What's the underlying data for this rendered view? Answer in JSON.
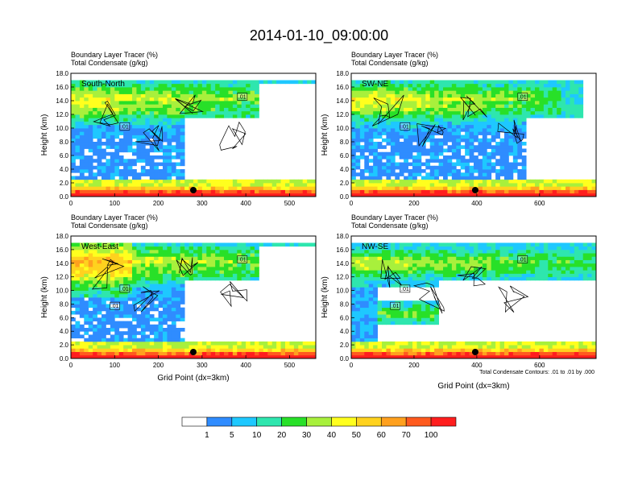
{
  "figure": {
    "title": "2014-01-10_09:00:00",
    "footnote": "Total Condensate Contours: .01 to .01 by .000"
  },
  "colorbar": {
    "colors": [
      "#ffffff",
      "#2f8cff",
      "#1ec8ff",
      "#2ee6ae",
      "#28e028",
      "#a8f03c",
      "#ffff1e",
      "#ffd21e",
      "#ffa01e",
      "#ff5a1e",
      "#ff1e1e"
    ],
    "labels": [
      "1",
      "5",
      "10",
      "20",
      "30",
      "40",
      "50",
      "60",
      "70",
      "100"
    ]
  },
  "chart_data": [
    {
      "type": "heatmap",
      "subtitle_1": "Boundary Layer Tracer   (%)",
      "subtitle_2": "Total Condensate   (g/kg)",
      "direction": "South-North",
      "ylabel": "Height (km)",
      "xlabel": "",
      "xlim": [
        0,
        560
      ],
      "ylim": [
        0,
        18
      ],
      "xticks": [
        "0",
        "100",
        "200",
        "300",
        "400",
        "500"
      ],
      "xtick_values": [
        0,
        100,
        200,
        300,
        400,
        500
      ],
      "yticks": [
        "0.0",
        "2.0",
        "4.0",
        "6.0",
        "8.0",
        "10.0",
        "12.0",
        "14.0",
        "16.0",
        "18.0"
      ],
      "contour_labels": [
        ".01",
        ".01"
      ],
      "marker_x": 280
    },
    {
      "type": "heatmap",
      "subtitle_1": "Boundary Layer Tracer   (%)",
      "subtitle_2": "Total Condensate   (g/kg)",
      "direction": "SW-NE",
      "ylabel": "Height (km)",
      "xlabel": "",
      "xlim": [
        0,
        780
      ],
      "ylim": [
        0,
        18
      ],
      "xticks": [
        "0",
        "200",
        "400",
        "600"
      ],
      "xtick_values": [
        0,
        200,
        400,
        600
      ],
      "yticks": [
        "0.0",
        "2.0",
        "4.0",
        "6.0",
        "8.0",
        "10.0",
        "12.0",
        "14.0",
        "16.0",
        "18.0"
      ],
      "contour_labels": [
        ".01",
        ".01"
      ],
      "marker_x": 395
    },
    {
      "type": "heatmap",
      "subtitle_1": "Boundary Layer Tracer   (%)",
      "subtitle_2": "Total Condensate   (g/kg)",
      "direction": "West-East",
      "ylabel": "Height (km)",
      "xlabel": "Grid Point (dx=3km)",
      "xlim": [
        0,
        560
      ],
      "ylim": [
        0,
        18
      ],
      "xticks": [
        "0",
        "100",
        "200",
        "300",
        "400",
        "500"
      ],
      "xtick_values": [
        0,
        100,
        200,
        300,
        400,
        500
      ],
      "yticks": [
        "0.0",
        "2.0",
        "4.0",
        "6.0",
        "8.0",
        "10.0",
        "12.0",
        "14.0",
        "16.0",
        "18.0"
      ],
      "contour_labels": [
        ".01",
        ".01",
        ".01"
      ],
      "marker_x": 280
    },
    {
      "type": "heatmap",
      "subtitle_1": "Boundary Layer Tracer   (%)",
      "subtitle_2": "Total Condensate   (g/kg)",
      "direction": "NW-SE",
      "ylabel": "Height (km)",
      "xlabel": "Grid Point (dx=3km)",
      "xlim": [
        0,
        780
      ],
      "ylim": [
        0,
        18
      ],
      "xticks": [
        "0",
        "200",
        "400",
        "600"
      ],
      "xtick_values": [
        0,
        200,
        400,
        600
      ],
      "yticks": [
        "0.0",
        "2.0",
        "4.0",
        "6.0",
        "8.0",
        "10.0",
        "12.0",
        "14.0",
        "16.0",
        "18.0"
      ],
      "contour_labels": [
        ".01",
        ".01",
        ".01"
      ],
      "marker_x": 395
    }
  ]
}
